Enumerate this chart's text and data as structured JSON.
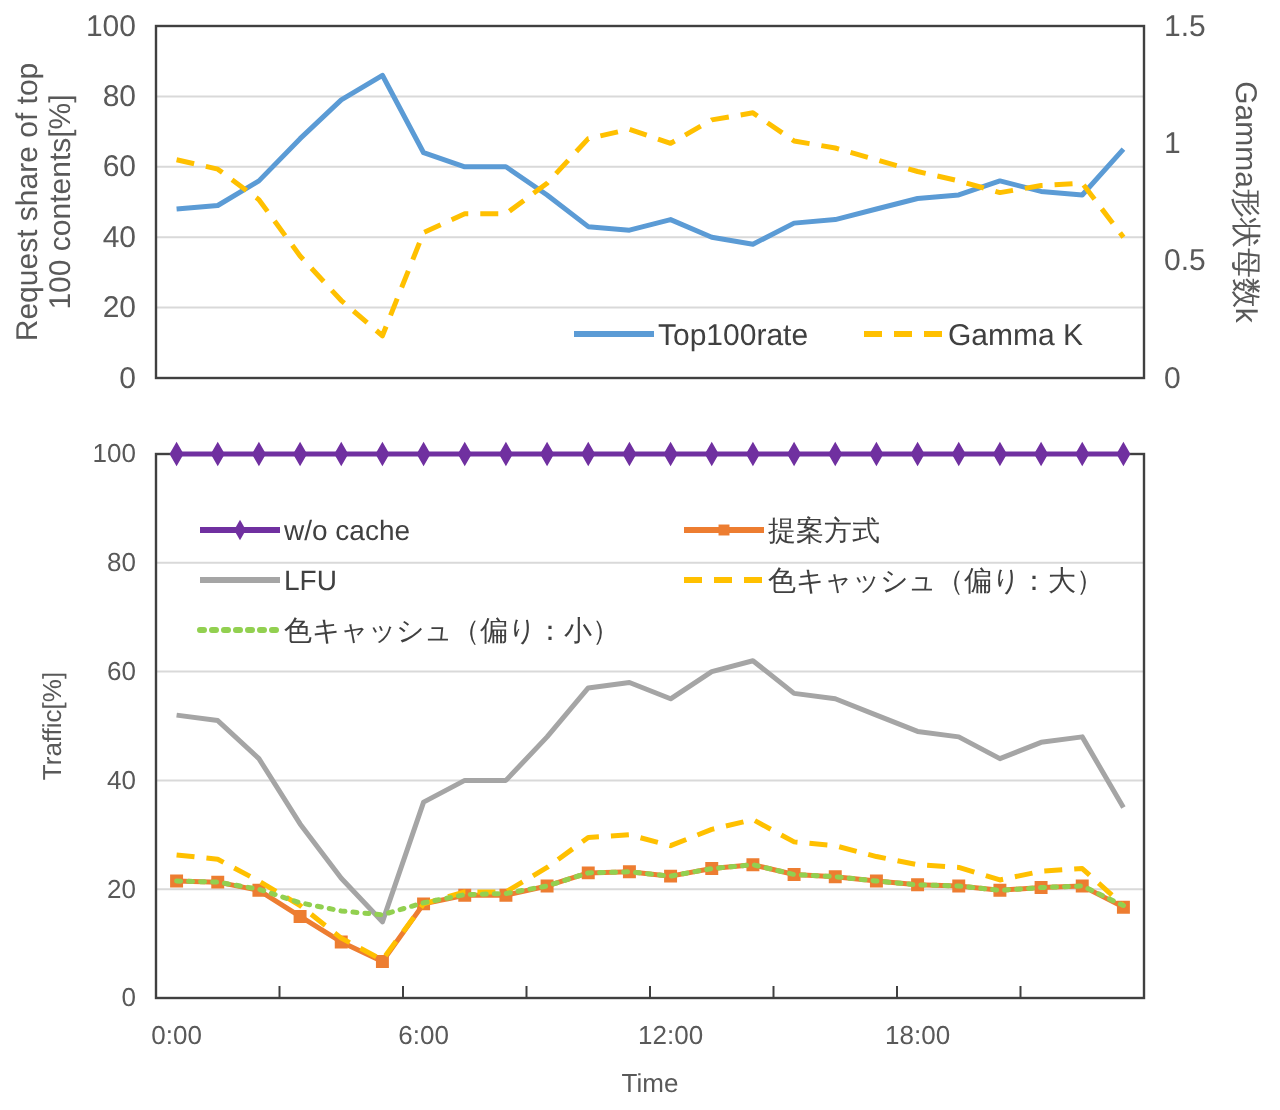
{
  "chart_data": [
    {
      "type": "line",
      "x": [
        0,
        1,
        2,
        3,
        4,
        5,
        6,
        7,
        8,
        9,
        10,
        11,
        12,
        13,
        14,
        15,
        16,
        17,
        18,
        19,
        20,
        21,
        22,
        23
      ],
      "xlim": [
        -0.5,
        23.5
      ],
      "ylim": [
        0,
        100
      ],
      "yticks": [
        0,
        20,
        40,
        60,
        80,
        100
      ],
      "y2lim": [
        0,
        1.5
      ],
      "y2ticks": [
        0,
        0.5,
        1,
        1.5
      ],
      "ylabel": "Request share of top 100 contents[%]",
      "y2label": "Gamma形状母数k",
      "grid": "y",
      "legend": "bottom right",
      "tick_labels": "y",
      "series": [
        {
          "name": "Top100rate",
          "color": "#5b9bd5",
          "line_style": "solid",
          "values": [
            48,
            49,
            56,
            68,
            79,
            86,
            64,
            60,
            60,
            52,
            43,
            42,
            45,
            40,
            38,
            44,
            45,
            48,
            51,
            52,
            56,
            53,
            52,
            65
          ]
        },
        {
          "name": "Gamma K",
          "color": "#ffc000",
          "line_style": "dashed",
          "axis": "y2",
          "values": [
            0.93,
            0.89,
            0.76,
            0.52,
            0.33,
            0.18,
            0.62,
            0.7,
            0.7,
            0.83,
            1.02,
            1.06,
            1.0,
            1.1,
            1.13,
            1.01,
            0.98,
            0.93,
            0.88,
            0.84,
            0.79,
            0.82,
            0.83,
            0.6
          ]
        }
      ]
    },
    {
      "type": "line",
      "x": [
        0,
        1,
        2,
        3,
        4,
        5,
        6,
        7,
        8,
        9,
        10,
        11,
        12,
        13,
        14,
        15,
        16,
        17,
        18,
        19,
        20,
        21,
        22,
        23
      ],
      "xlim": [
        -0.5,
        23.5
      ],
      "xticks": [
        {
          "value": 0,
          "label": "0:00"
        },
        {
          "value": 2.5,
          "label": null
        },
        {
          "value": 5.5,
          "label": null
        },
        {
          "value": 6,
          "label": "6:00"
        },
        {
          "value": 8.5,
          "label": null
        },
        {
          "value": 11.5,
          "label": null
        },
        {
          "value": 12,
          "label": "12:00"
        },
        {
          "value": 14.5,
          "label": null
        },
        {
          "value": 17.5,
          "label": null
        },
        {
          "value": 18,
          "label": "18:00"
        },
        {
          "value": 20.5,
          "label": null
        }
      ],
      "ylim": [
        0,
        100
      ],
      "yticks": [
        0,
        20,
        40,
        60,
        80,
        100
      ],
      "xlabel": "Time",
      "ylabel": "Traffic[%]",
      "grid": "y",
      "legend": "top",
      "series": [
        {
          "name": "w/o cache",
          "color": "#7030a0",
          "line_style": "solid",
          "marker": "diamond",
          "values": [
            100,
            100,
            100,
            100,
            100,
            100,
            100,
            100,
            100,
            100,
            100,
            100,
            100,
            100,
            100,
            100,
            100,
            100,
            100,
            100,
            100,
            100,
            100,
            100
          ]
        },
        {
          "name": "提案方式",
          "color": "#ed7d31",
          "line_style": "solid",
          "marker": "square",
          "values": [
            21.5,
            21.3,
            19.8,
            15,
            10.3,
            6.7,
            17.3,
            18.9,
            18.9,
            20.6,
            23,
            23.2,
            22.4,
            23.8,
            24.5,
            22.7,
            22.3,
            21.5,
            20.8,
            20.6,
            19.8,
            20.3,
            20.6,
            16.7
          ]
        },
        {
          "name": "LFU",
          "color": "#a5a5a5",
          "line_style": "solid",
          "marker": "none",
          "values": [
            52,
            51,
            44,
            32,
            22,
            14,
            36,
            40,
            40,
            48,
            57,
            58,
            55,
            60,
            62,
            56,
            55,
            52,
            49,
            48,
            44,
            47,
            48,
            35
          ]
        },
        {
          "name": "色キャッシュ（偏り：大）",
          "color": "#ffc000",
          "line_style": "dashed",
          "marker": "none",
          "values": [
            26.3,
            25.5,
            21.5,
            17,
            11,
            7,
            17.3,
            19.5,
            19.5,
            24,
            29.5,
            30,
            28,
            31,
            32.8,
            28.7,
            28,
            26,
            24.5,
            24,
            21.7,
            23.3,
            23.8,
            17
          ]
        },
        {
          "name": "色キャッシュ（偏り：小）",
          "color": "#92d050",
          "line_style": "dotted",
          "marker": "none",
          "values": [
            21.5,
            21.3,
            20,
            17.5,
            16,
            15.3,
            17.5,
            19,
            19.2,
            20.6,
            23,
            23.2,
            22.4,
            23.8,
            24.5,
            22.7,
            22.3,
            21.5,
            20.8,
            20.6,
            19.8,
            20.3,
            20.6,
            17
          ]
        }
      ]
    }
  ]
}
